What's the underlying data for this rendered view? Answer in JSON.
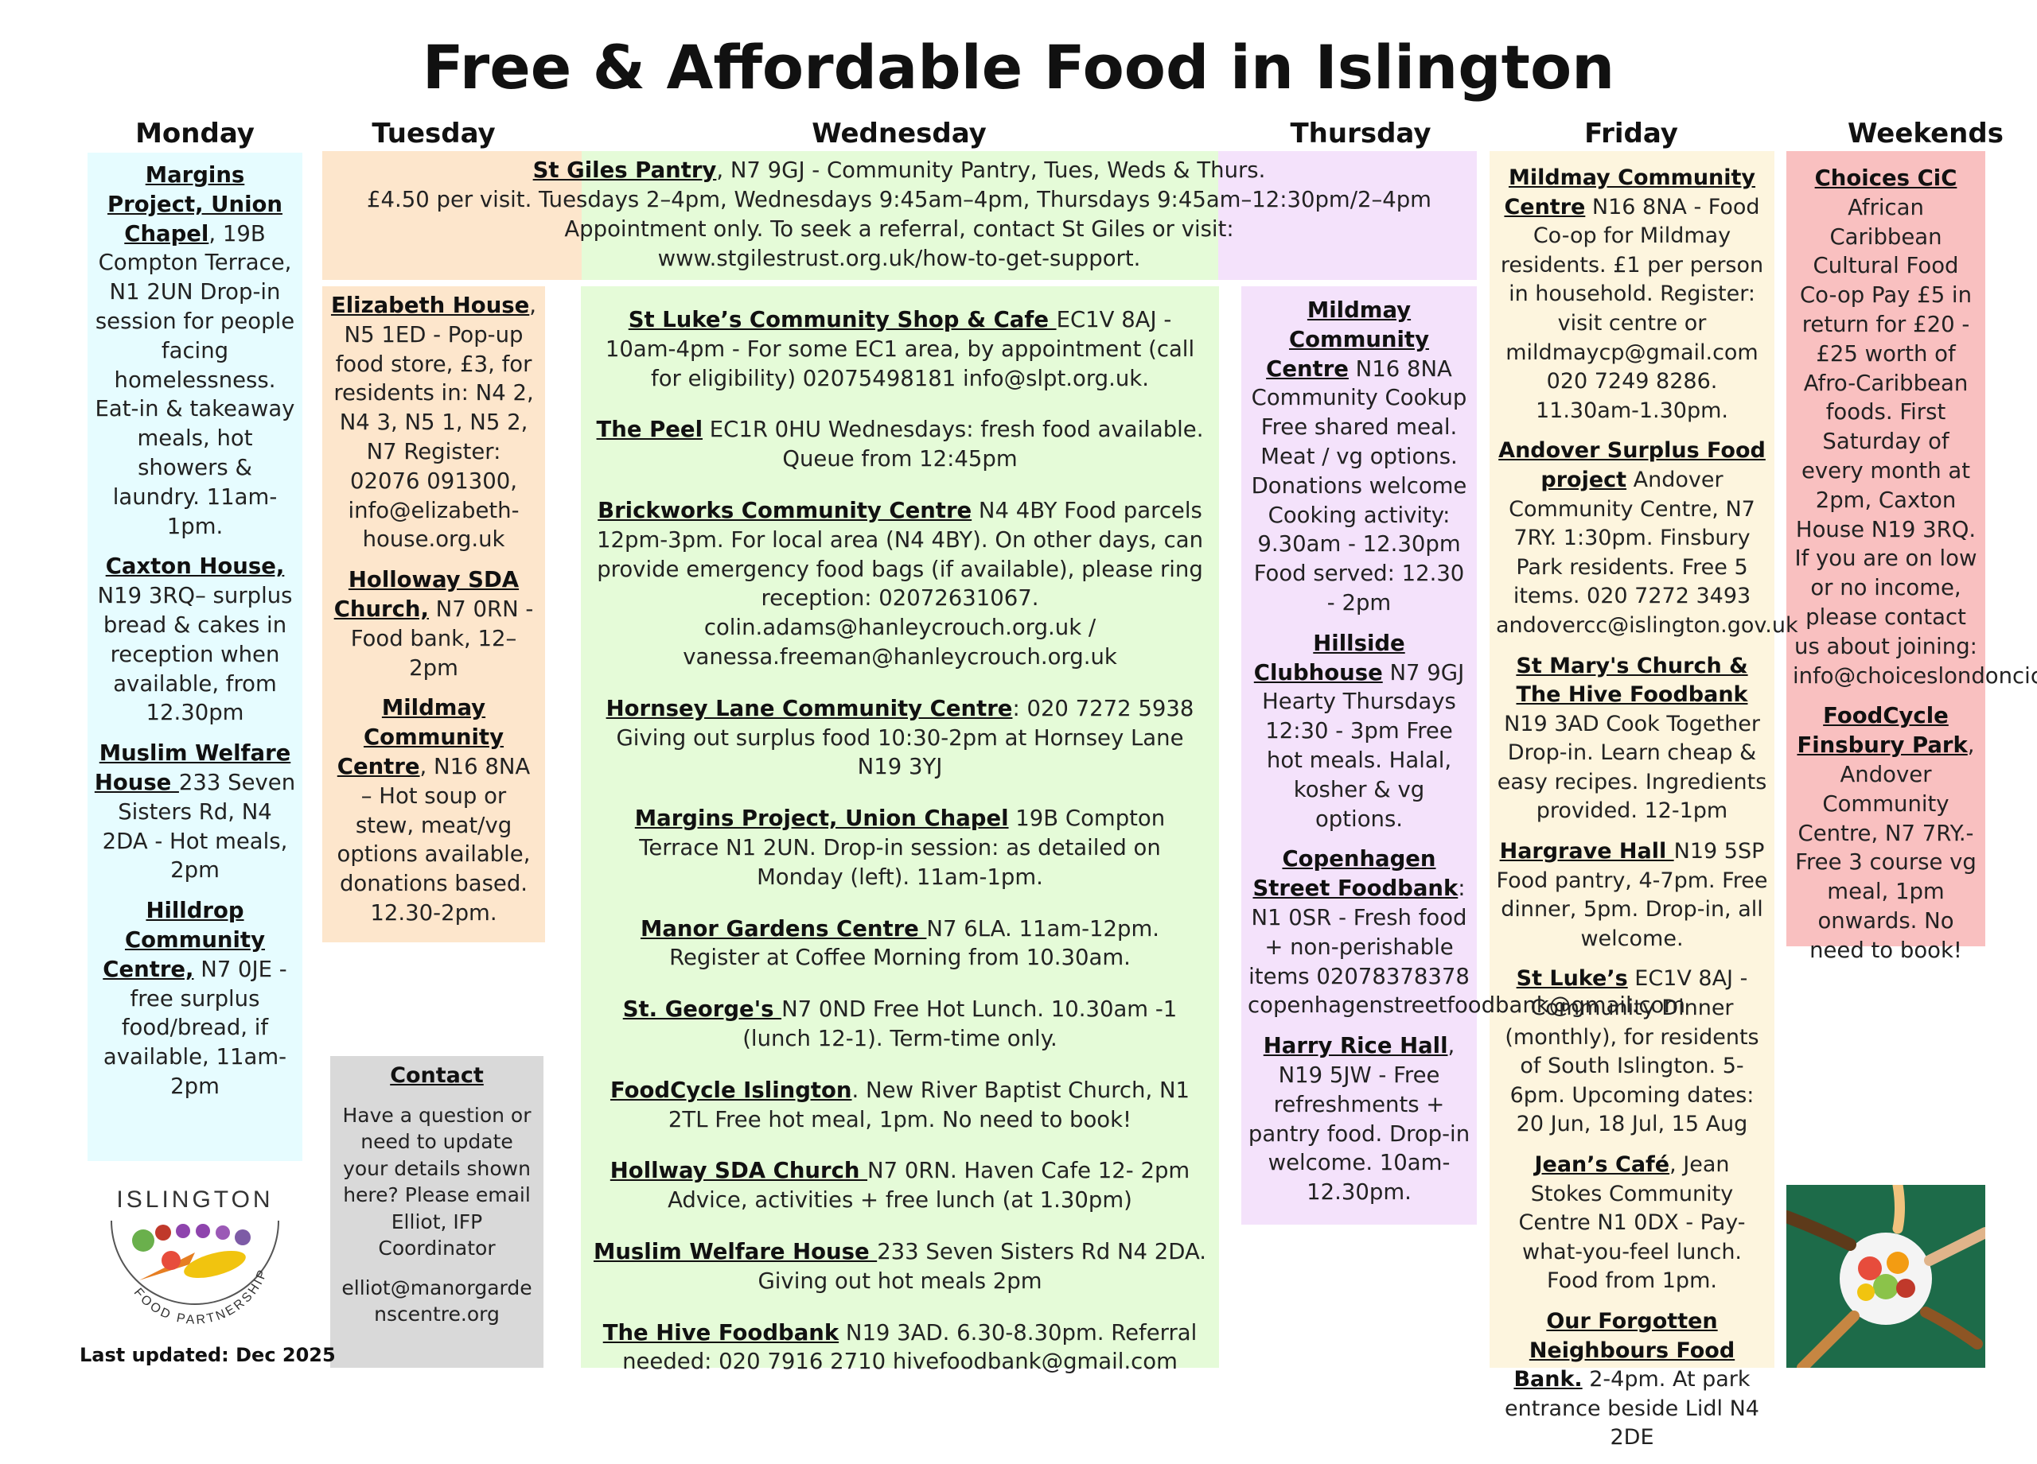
{
  "title": "Free & Affordable Food in Islington",
  "days": {
    "monday": "Monday",
    "tuesday": "Tuesday",
    "wednesday": "Wednesday",
    "thursday": "Thursday",
    "friday": "Friday",
    "weekends": "Weekends"
  },
  "colors": {
    "monday": "#e6fcff",
    "tuesday": "#fde6cc",
    "wednesday": "#e5fbd8",
    "thursday": "#f4e2fb",
    "friday": "#fdf5de",
    "weekends": "#f9c0c0",
    "contact": "#d9d9d9"
  },
  "banner": {
    "name": "St Giles Pantry",
    "rest": ", N7 9GJ - Community Pantry, Tues, Weds & Thurs.",
    "line2": "£4.50 per visit. Tuesdays 2–4pm, Wednesdays 9:45am–4pm, Thursdays 9:45am–12:30pm/2–4pm",
    "line3": "Appointment only. To seek a referral, contact St Giles or visit:",
    "line4": "www.stgilestrust.org.uk/how-to-get-support."
  },
  "monday": [
    {
      "name": "Margins Project, Union Chapel",
      "text": ", 19B Compton Terrace, N1 2UN Drop-in session for people facing homelessness. Eat-in & takeaway meals, hot showers & laundry. 11am-1pm."
    },
    {
      "name": "Caxton House,",
      "text": " N19 3RQ– surplus bread & cakes in reception when available, from 12.30pm"
    },
    {
      "name": "Muslim Welfare House ",
      "text": "233 Seven Sisters Rd, N4 2DA - Hot meals, 2pm"
    },
    {
      "name": "Hilldrop Community Centre,",
      "text": " N7 0JE - free surplus food/bread, if available, 11am-2pm"
    }
  ],
  "tuesday": [
    {
      "name": "Elizabeth House",
      "text": ", N5 1ED - Pop-up food store, £3, for residents in: N4 2, N4 3, N5 1, N5 2, N7 Register: 02076 091300, info@elizabeth-house.org.uk"
    },
    {
      "name": "Holloway SDA Church,",
      "text": " N7 0RN - Food bank, 12–2pm"
    },
    {
      "name": "Mildmay Community Centre",
      "text": ", N16 8NA – Hot soup or stew, meat/vg options available, donations based. 12.30-2pm."
    }
  ],
  "wednesday": [
    {
      "name": "St Luke’s Community Shop & Cafe ",
      "text": "EC1V 8AJ - 10am-4pm - For some EC1 area, by appointment (call for eligibility) 02075498181 info@slpt.org.uk."
    },
    {
      "name": "The Peel",
      "text": " EC1R 0HU Wednesdays: fresh food available. Queue from 12:45pm"
    },
    {
      "name": "Brickworks Community Centre",
      "text": " N4 4BY Food parcels 12pm-3pm. For local area (N4 4BY). On other days, can provide emergency food bags (if available), please ring reception: 02072631067. colin.adams@hanleycrouch.org.uk / vanessa.freeman@hanleycrouch.org.uk"
    },
    {
      "name": "Hornsey Lane Community Centre",
      "text": ": 020 7272 5938 Giving out surplus food 10:30-2pm at Hornsey Lane N19 3YJ"
    },
    {
      "name": "Margins Project, Union Chapel",
      "text": " 19B Compton Terrace N1 2UN. Drop-in session: as detailed on Monday (left). 11am-1pm."
    },
    {
      "name": "Manor Gardens Centre ",
      "text": "N7 6LA. 11am-12pm. Register at Coffee Morning from 10.30am."
    },
    {
      "name": "St. George's ",
      "text": "N7 0ND Free Hot Lunch. 10.30am -1 (lunch 12-1). Term-time only."
    },
    {
      "name": "FoodCycle Islington",
      "text": ". New River Baptist Church, N1 2TL Free hot meal, 1pm. No need to book!"
    },
    {
      "name": "Hollway SDA Church ",
      "text": "N7 0RN. Haven Cafe 12- 2pm Advice, activities + free lunch (at 1.30pm)"
    },
    {
      "name": "Muslim Welfare House ",
      "text": "233 Seven Sisters Rd N4 2DA. Giving out hot meals 2pm"
    },
    {
      "name": "The Hive Foodbank",
      "text": " N19 3AD. 6.30-8.30pm. Referral needed: 020 7916 2710 hivefoodbank@gmail.com"
    }
  ],
  "thursday": [
    {
      "name": "Mildmay Community Centre",
      "text": " N16 8NA Community Cookup Free shared meal. Meat / vg options. Donations welcome Cooking activity: 9.30am - 12.30pm Food served: 12.30 - 2pm"
    },
    {
      "name": "Hillside Clubhouse",
      "text": " N7 9GJ Hearty Thursdays 12:30 - 3pm Free hot meals. Halal, kosher & vg options."
    },
    {
      "name": "Copenhagen Street Foodbank",
      "text": ": N1 0SR - Fresh food + non-perishable items 02078378378 copenhagenstreetfoodbank@gmail.com"
    },
    {
      "name": "Harry Rice Hall",
      "text": ", N19 5JW - Free refreshments + pantry food. Drop-in welcome. 10am-12.30pm."
    }
  ],
  "friday": [
    {
      "name": "Mildmay Community Centre",
      "text": " N16 8NA - Food Co-op for Mildmay residents. £1 per person in household. Register: visit centre or mildmaycp@gmail.com 020 7249 8286. 11.30am-1.30pm."
    },
    {
      "name": "Andover Surplus Food project",
      "text": " Andover Community Centre, N7 7RY. 1:30pm. Finsbury Park residents. Free 5 items. 020 7272 3493 andovercc@islington.gov.uk"
    },
    {
      "name": "St Mary's Church & The Hive Foodbank ",
      "text": "N19 3AD Cook Together Drop-in. Learn cheap & easy recipes. Ingredients provided. 12-1pm"
    },
    {
      "name": "Hargrave Hall ",
      "text": "N19 5SP Food pantry, 4-7pm. Free dinner, 5pm. Drop-in, all welcome."
    },
    {
      "name": "St Luke’s",
      "text": " EC1V 8AJ - Community Dinner (monthly), for residents of South Islington. 5-6pm. Upcoming dates: 20 Jun, 18 Jul, 15 Aug"
    },
    {
      "name": "Jean’s Café",
      "text": ", Jean Stokes Community Centre N1 0DX - Pay-what-you-feel lunch. Food from 1pm."
    },
    {
      "name": "Our Forgotten Neighbours Food Bank.",
      "text": " 2-4pm. At park entrance beside Lidl N4 2DE"
    }
  ],
  "weekends": [
    {
      "name": "Choices CiC",
      "text": " African Caribbean Cultural Food Co-op Pay £5 in return for £20 - £25 worth of Afro-Caribbean foods. First Saturday of every month at 2pm, Caxton House N19 3RQ. If you are on low or no income, please contact us about joining: info@choiceslondoncic.com"
    },
    {
      "name": "FoodCycle Finsbury Park",
      "text": ", Andover Community Centre, N7 7RY.- Free 3 course vg meal, 1pm onwards. No need to book!"
    }
  ],
  "contact": {
    "heading": "Contact",
    "body": "Have a question or need to update your details shown here? Please email Elliot, IFP Coordinator",
    "email": "elliot@manorgardenscentre.org"
  },
  "logo": {
    "top": "ISLINGTON",
    "bottom": "FOOD PARTNERSHIP"
  },
  "updated": "Last updated: Dec 2025"
}
